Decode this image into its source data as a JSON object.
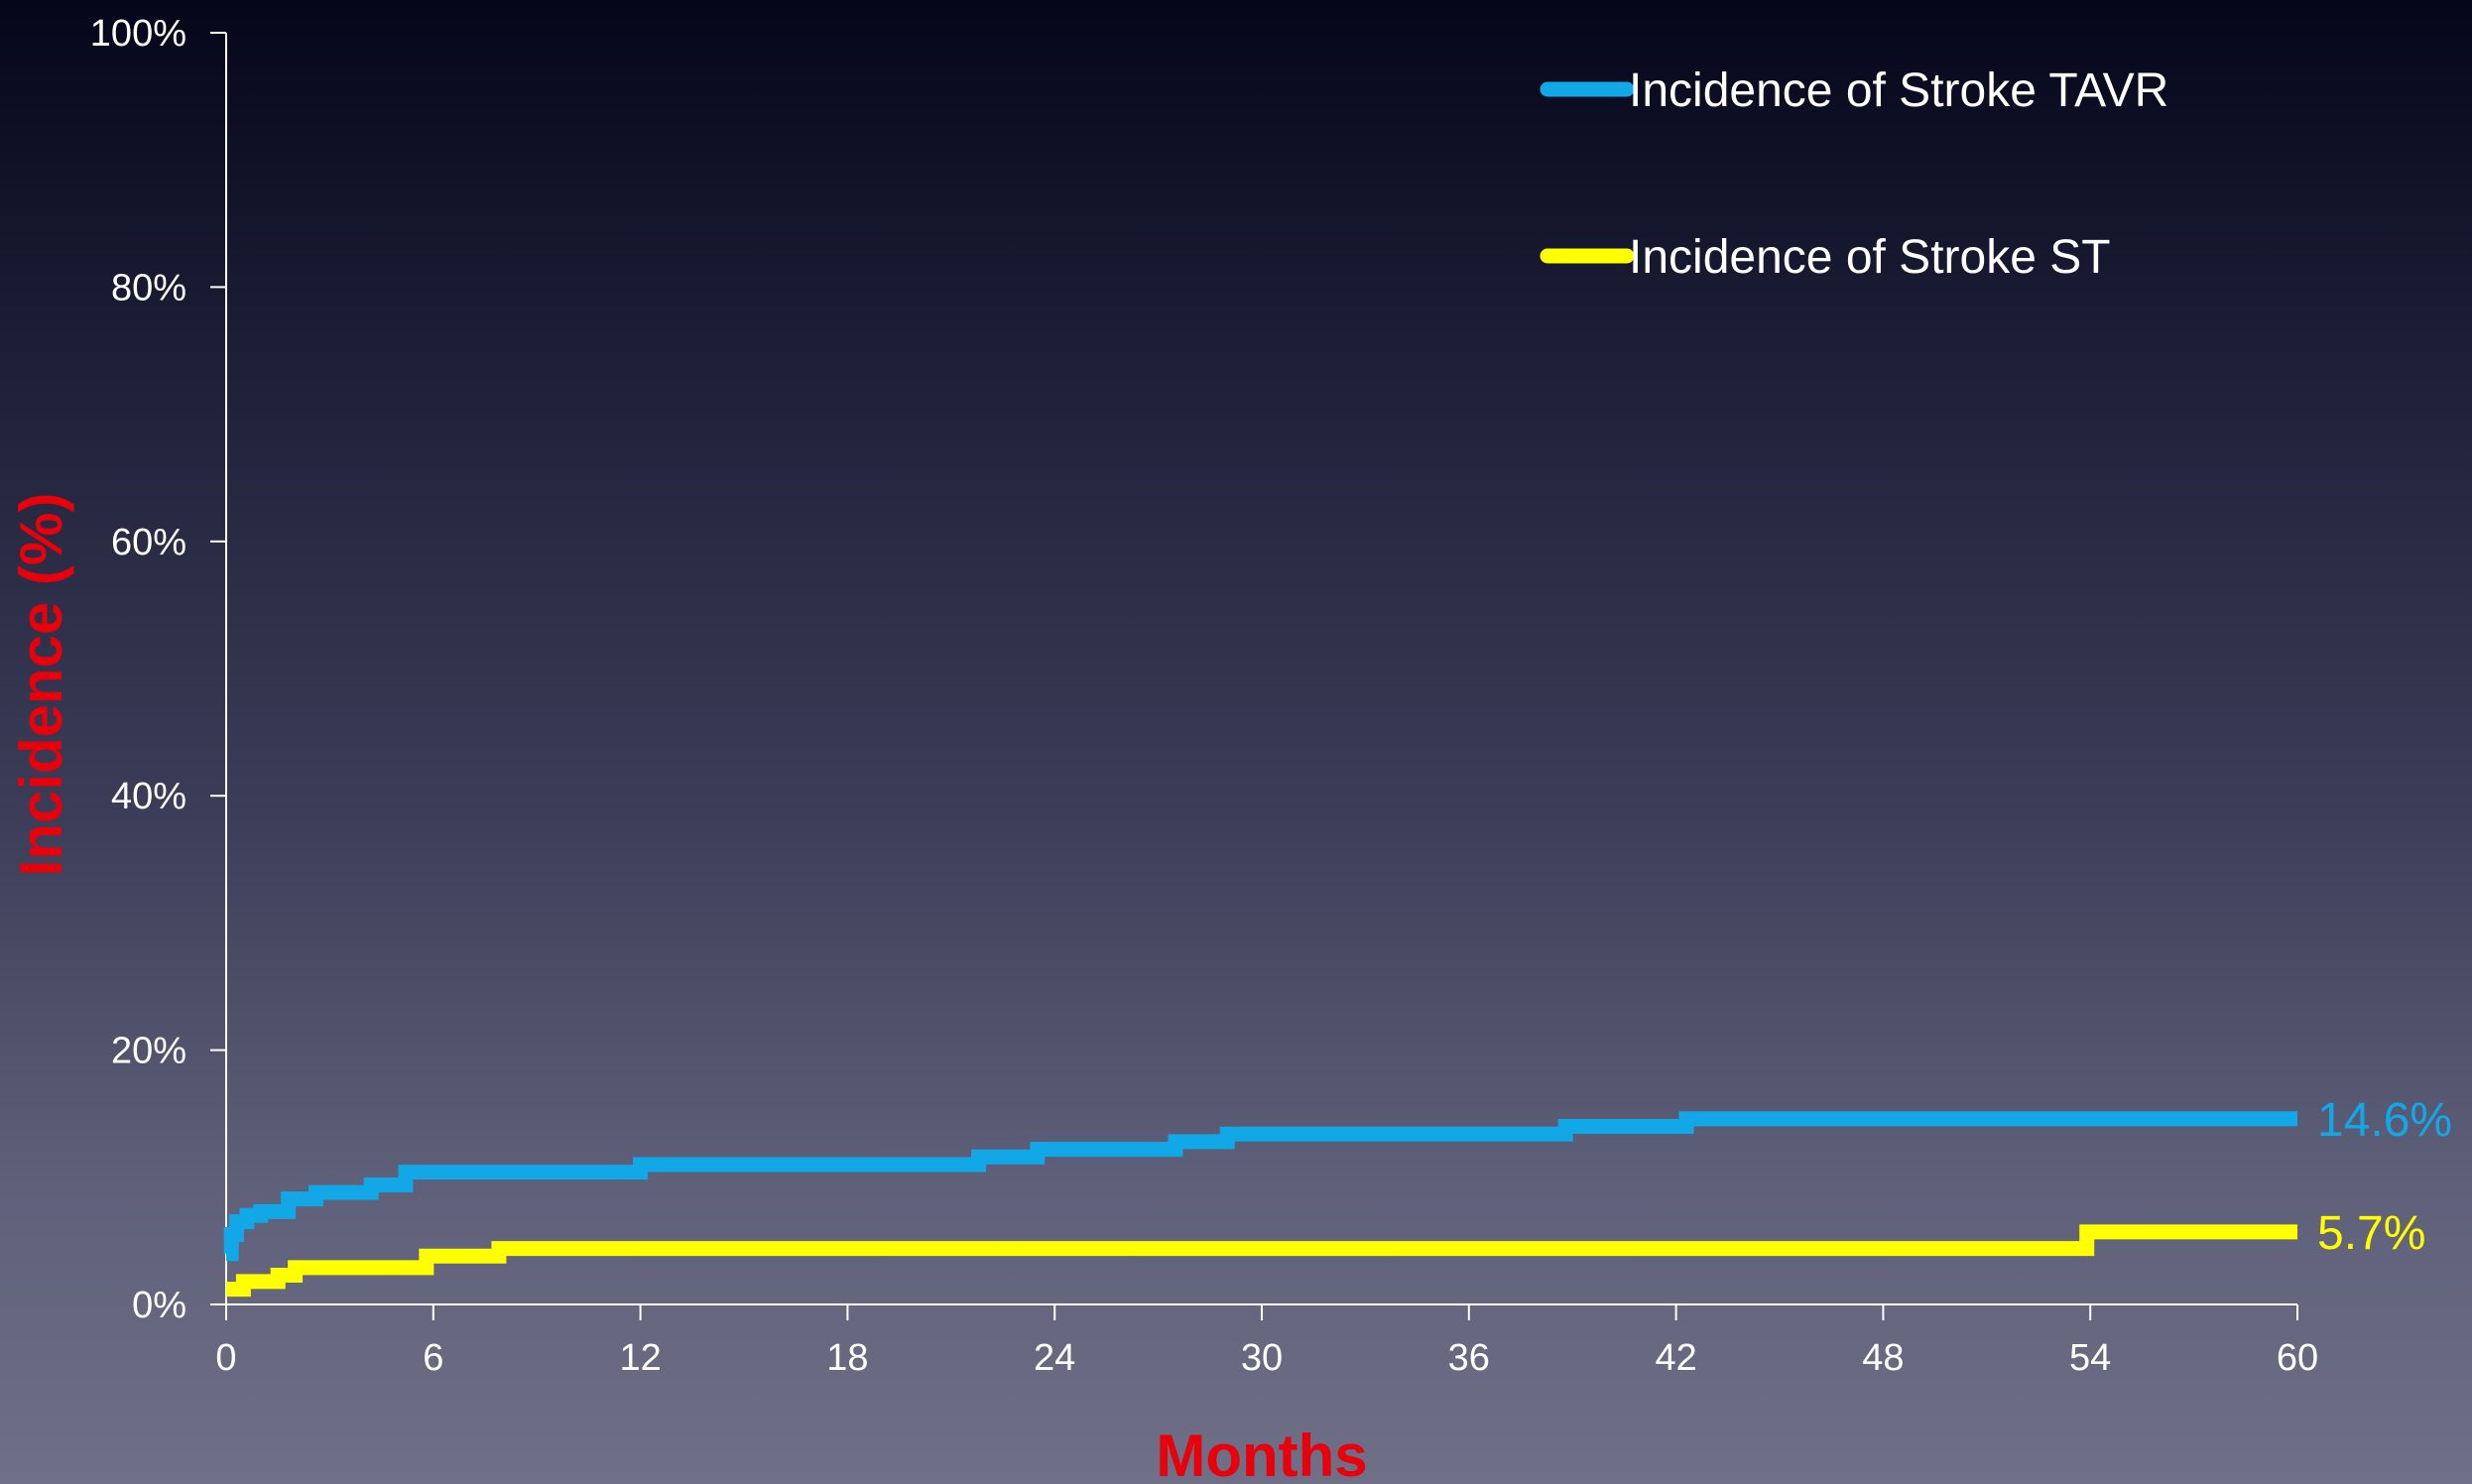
{
  "chart_data": {
    "type": "line",
    "xlabel": "Months",
    "ylabel": "Incidence (%)",
    "xlim": [
      0,
      60
    ],
    "ylim": [
      0,
      100
    ],
    "x_ticks": [
      0,
      6,
      12,
      18,
      24,
      30,
      36,
      42,
      48,
      54,
      60
    ],
    "y_ticks": [
      0,
      20,
      40,
      60,
      80,
      100
    ],
    "y_tick_labels": [
      "0%",
      "20%",
      "40%",
      "60%",
      "80%",
      "100%"
    ],
    "grid": false,
    "legend_position": "top-right",
    "series": [
      {
        "name": "Incidence of Stroke TAVR",
        "color": "#12a8e8",
        "end_label": "14.6%",
        "points": [
          [
            0,
            4.0
          ],
          [
            0.15,
            5.5
          ],
          [
            0.3,
            6.5
          ],
          [
            0.6,
            7.0
          ],
          [
            1.0,
            7.3
          ],
          [
            1.8,
            8.3
          ],
          [
            2.6,
            8.8
          ],
          [
            4.2,
            9.4
          ],
          [
            5.2,
            10.4
          ],
          [
            12.0,
            11.0
          ],
          [
            21.8,
            11.6
          ],
          [
            23.5,
            12.2
          ],
          [
            27.5,
            12.8
          ],
          [
            29.0,
            13.4
          ],
          [
            38.8,
            14.0
          ],
          [
            42.3,
            14.6
          ],
          [
            60,
            14.6
          ]
        ]
      },
      {
        "name": "Incidence of Stroke ST",
        "color": "#ffff00",
        "end_label": "5.7%",
        "points": [
          [
            0,
            1.2
          ],
          [
            0.5,
            1.8
          ],
          [
            1.5,
            2.3
          ],
          [
            2.0,
            2.9
          ],
          [
            5.8,
            3.8
          ],
          [
            7.9,
            4.4
          ],
          [
            53.9,
            5.7
          ],
          [
            60,
            5.7
          ]
        ]
      }
    ]
  }
}
